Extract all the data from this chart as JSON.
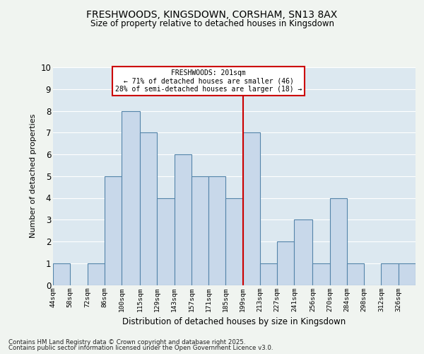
{
  "title1": "FRESHWOODS, KINGSDOWN, CORSHAM, SN13 8AX",
  "title2": "Size of property relative to detached houses in Kingsdown",
  "xlabel": "Distribution of detached houses by size in Kingsdown",
  "ylabel": "Number of detached properties",
  "bin_edges": [
    44,
    58,
    72,
    86,
    100,
    115,
    129,
    143,
    157,
    171,
    185,
    199,
    213,
    227,
    241,
    256,
    270,
    284,
    298,
    312,
    326
  ],
  "bin_labels": [
    "44sqm",
    "58sqm",
    "72sqm",
    "86sqm",
    "100sqm",
    "115sqm",
    "129sqm",
    "143sqm",
    "157sqm",
    "171sqm",
    "185sqm",
    "199sqm",
    "213sqm",
    "227sqm",
    "241sqm",
    "256sqm",
    "270sqm",
    "284sqm",
    "298sqm",
    "312sqm",
    "326sqm"
  ],
  "values": [
    1,
    0,
    1,
    5,
    8,
    7,
    4,
    6,
    5,
    5,
    4,
    7,
    1,
    2,
    3,
    1,
    4,
    1,
    0,
    1,
    1
  ],
  "bar_facecolor": "#c8d8ea",
  "bar_edgecolor": "#5585aa",
  "bar_linewidth": 0.8,
  "grid_color": "#ffffff",
  "bg_color": "#dce8f0",
  "vline_idx": 11,
  "vline_color": "#cc0000",
  "annotation_line1": "FRESHWOODS: 201sqm",
  "annotation_line2": "← 71% of detached houses are smaller (46)",
  "annotation_line3": "28% of semi-detached houses are larger (18) →",
  "ylim": [
    0,
    10
  ],
  "yticks": [
    0,
    1,
    2,
    3,
    4,
    5,
    6,
    7,
    8,
    9,
    10
  ],
  "footnote1": "Contains HM Land Registry data © Crown copyright and database right 2025.",
  "footnote2": "Contains public sector information licensed under the Open Government Licence v3.0."
}
